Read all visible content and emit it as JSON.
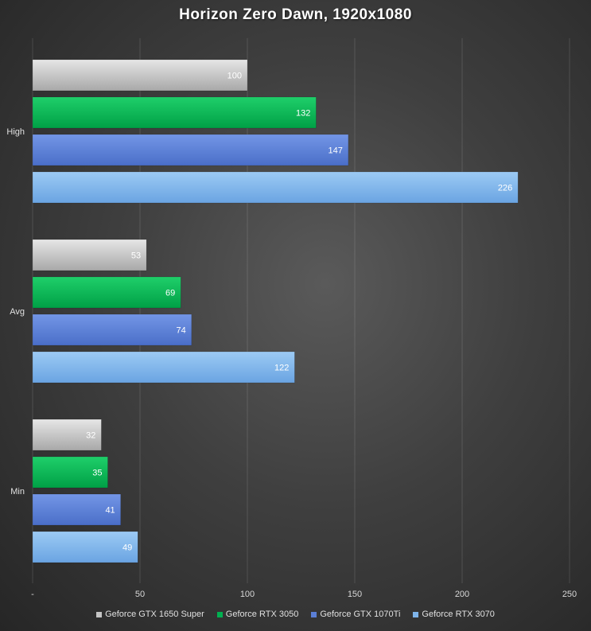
{
  "chart_data": {
    "type": "bar",
    "orientation": "horizontal",
    "title": "Horizon  Zero Dawn, 1920x1080",
    "categories": [
      "High",
      "Avg",
      "Min"
    ],
    "series": [
      {
        "name": "Geforce GTX 1650 Super",
        "color": "#c4c4c4",
        "values": [
          100,
          53,
          32
        ]
      },
      {
        "name": "Geforce RTX 3050",
        "color": "#00b050",
        "values": [
          132,
          69,
          35
        ]
      },
      {
        "name": "Geforce GTX 1070Ti",
        "color": "#5b7fd6",
        "values": [
          147,
          74,
          41
        ]
      },
      {
        "name": "Geforce RTX 3070",
        "color": "#7fb4ea",
        "values": [
          226,
          122,
          49
        ]
      }
    ],
    "xlim": [
      0,
      250
    ],
    "xticks": [
      {
        "value": 0,
        "label": "-"
      },
      {
        "value": 50,
        "label": "50"
      },
      {
        "value": 100,
        "label": "100"
      },
      {
        "value": 150,
        "label": "150"
      },
      {
        "value": 200,
        "label": "200"
      },
      {
        "value": 250,
        "label": "250"
      }
    ],
    "grid": "vertical",
    "legend_position": "bottom",
    "data_labels": true
  }
}
